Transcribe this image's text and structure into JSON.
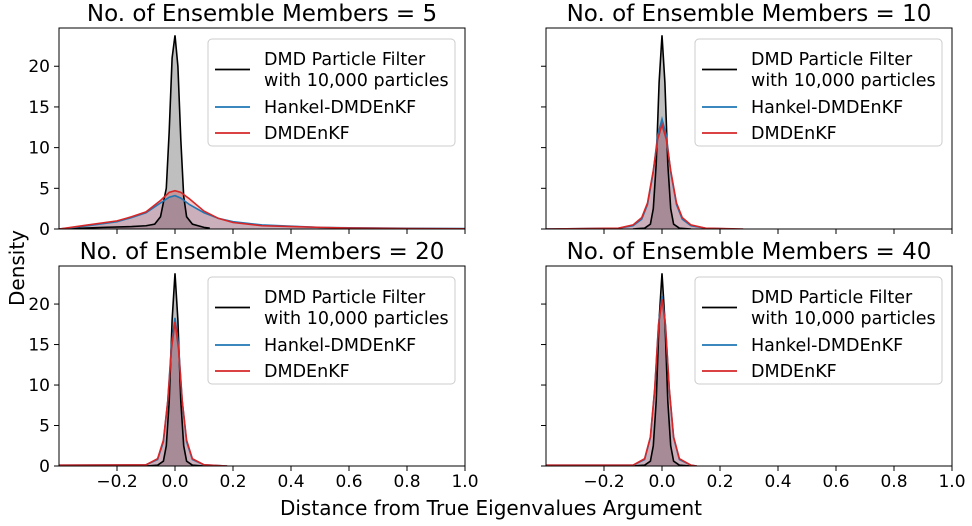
{
  "figure": {
    "ylabel": "Density",
    "xlabel": "Distance from True Eigenvalues Argument"
  },
  "colors": {
    "particle_filter": "#000000",
    "hankel": "#1f77b4",
    "dmdenkf": "#d62728"
  },
  "chart_data": [
    {
      "type": "line",
      "title": "No. of Ensemble Members = 5",
      "xlim": [
        -0.4,
        1.0
      ],
      "ylim": [
        0,
        24.7
      ],
      "xticks": [
        -0.2,
        0.0,
        0.2,
        0.4,
        0.6,
        0.8,
        1.0
      ],
      "xtick_labels": [
        "−0.2",
        "0.0",
        "0.2",
        "0.4",
        "0.6",
        "0.8",
        "1.0"
      ],
      "yticks": [
        0,
        5,
        10,
        15,
        20
      ],
      "ytick_labels": [
        "0",
        "5",
        "10",
        "15",
        "20"
      ],
      "show_y_tick_labels": true,
      "show_x_tick_labels": false,
      "legend": [
        "DMD Particle Filter with 10,000 particles",
        "Hankel-DMDEnKF",
        "DMDEnKF"
      ],
      "legend_lines": [
        [
          "DMD Particle Filter",
          "with 10,000 particles"
        ],
        [
          "Hankel-DMDEnKF"
        ],
        [
          "DMDEnKF"
        ]
      ],
      "legend_position": "top-right",
      "series": [
        {
          "name": "DMD Particle Filter with 10,000 particles",
          "x": [
            -0.4,
            -0.25,
            -0.15,
            -0.1,
            -0.07,
            -0.05,
            -0.03,
            -0.02,
            -0.01,
            0.0,
            0.01,
            0.02,
            0.03,
            0.04,
            0.06,
            0.1,
            0.12
          ],
          "y": [
            0,
            0.2,
            0.3,
            0.4,
            0.6,
            1.5,
            5,
            12,
            21,
            23.8,
            20,
            11,
            4,
            1.5,
            0.6,
            0.2,
            0.1
          ]
        },
        {
          "name": "Hankel-DMDEnKF",
          "x": [
            -0.4,
            -0.3,
            -0.2,
            -0.15,
            -0.1,
            -0.05,
            -0.02,
            0.0,
            0.02,
            0.05,
            0.1,
            0.15,
            0.2,
            0.3,
            0.4,
            0.5,
            0.6,
            0.8,
            1.0
          ],
          "y": [
            0,
            0.4,
            0.9,
            1.4,
            2.0,
            3.2,
            3.9,
            4.1,
            3.8,
            3.0,
            2.0,
            1.3,
            0.9,
            0.5,
            0.35,
            0.2,
            0.15,
            0.08,
            0.05
          ]
        },
        {
          "name": "DMDEnKF",
          "x": [
            -0.4,
            -0.3,
            -0.2,
            -0.15,
            -0.1,
            -0.05,
            -0.02,
            0.0,
            0.02,
            0.05,
            0.1,
            0.15,
            0.2,
            0.3,
            0.4,
            0.5,
            0.6,
            0.8,
            1.0
          ],
          "y": [
            0,
            0.5,
            1.0,
            1.5,
            2.1,
            3.5,
            4.5,
            4.7,
            4.5,
            3.7,
            2.2,
            1.3,
            0.8,
            0.4,
            0.3,
            0.2,
            0.12,
            0.06,
            0.03
          ]
        }
      ]
    },
    {
      "type": "line",
      "title": "No. of Ensemble Members = 10",
      "xlim": [
        -0.4,
        1.0
      ],
      "ylim": [
        0,
        24.7
      ],
      "xticks": [
        -0.2,
        0.0,
        0.2,
        0.4,
        0.6,
        0.8,
        1.0
      ],
      "xtick_labels": [
        "−0.2",
        "0.0",
        "0.2",
        "0.4",
        "0.6",
        "0.8",
        "1.0"
      ],
      "yticks": [
        0,
        5,
        10,
        15,
        20
      ],
      "ytick_labels": [
        "0",
        "5",
        "10",
        "15",
        "20"
      ],
      "show_y_tick_labels": false,
      "show_x_tick_labels": false,
      "legend": [
        "DMD Particle Filter with 10,000 particles",
        "Hankel-DMDEnKF",
        "DMDEnKF"
      ],
      "legend_lines": [
        [
          "DMD Particle Filter",
          "with 10,000 particles"
        ],
        [
          "Hankel-DMDEnKF"
        ],
        [
          "DMDEnKF"
        ]
      ],
      "legend_position": "top-right",
      "series": [
        {
          "name": "DMD Particle Filter with 10,000 particles",
          "x": [
            -0.1,
            -0.06,
            -0.04,
            -0.03,
            -0.02,
            -0.01,
            0.0,
            0.01,
            0.02,
            0.03,
            0.04,
            0.06,
            0.1
          ],
          "y": [
            0,
            0.1,
            0.6,
            2.5,
            8,
            18,
            23.8,
            18,
            8,
            2.5,
            0.6,
            0.1,
            0
          ]
        },
        {
          "name": "Hankel-DMDEnKF",
          "x": [
            -0.4,
            -0.15,
            -0.1,
            -0.07,
            -0.05,
            -0.03,
            -0.015,
            0.0,
            0.015,
            0.03,
            0.05,
            0.07,
            0.1,
            0.15,
            0.25
          ],
          "y": [
            0,
            0.1,
            0.4,
            1.2,
            3,
            7,
            11.5,
            13.5,
            11.5,
            7,
            3,
            1.2,
            0.4,
            0.1,
            0
          ]
        },
        {
          "name": "DMDEnKF",
          "x": [
            -0.4,
            -0.15,
            -0.1,
            -0.07,
            -0.05,
            -0.03,
            -0.015,
            0.0,
            0.015,
            0.03,
            0.05,
            0.07,
            0.1,
            0.15,
            0.28
          ],
          "y": [
            0,
            0.1,
            0.5,
            1.4,
            3.2,
            7.2,
            11,
            12.8,
            11,
            7.2,
            3.2,
            1.4,
            0.5,
            0.1,
            0
          ]
        }
      ]
    },
    {
      "type": "line",
      "title": "No. of Ensemble Members = 20",
      "xlim": [
        -0.4,
        1.0
      ],
      "ylim": [
        0,
        24.7
      ],
      "xticks": [
        -0.2,
        0.0,
        0.2,
        0.4,
        0.6,
        0.8,
        1.0
      ],
      "xtick_labels": [
        "−0.2",
        "0.0",
        "0.2",
        "0.4",
        "0.6",
        "0.8",
        "1.0"
      ],
      "yticks": [
        0,
        5,
        10,
        15,
        20
      ],
      "ytick_labels": [
        "0",
        "5",
        "10",
        "15",
        "20"
      ],
      "show_y_tick_labels": true,
      "show_x_tick_labels": true,
      "legend": [
        "DMD Particle Filter with 10,000 particles",
        "Hankel-DMDEnKF",
        "DMDEnKF"
      ],
      "legend_lines": [
        [
          "DMD Particle Filter",
          "with 10,000 particles"
        ],
        [
          "Hankel-DMDEnKF"
        ],
        [
          "DMDEnKF"
        ]
      ],
      "legend_position": "top-right",
      "series": [
        {
          "name": "DMD Particle Filter with 10,000 particles",
          "x": [
            -0.1,
            -0.06,
            -0.04,
            -0.03,
            -0.02,
            -0.01,
            0.0,
            0.01,
            0.02,
            0.03,
            0.04,
            0.06,
            0.1
          ],
          "y": [
            0,
            0.1,
            0.6,
            2.5,
            8,
            18,
            23.8,
            18,
            8,
            2.5,
            0.6,
            0.1,
            0
          ]
        },
        {
          "name": "Hankel-DMDEnKF",
          "x": [
            -0.4,
            -0.1,
            -0.06,
            -0.04,
            -0.025,
            -0.012,
            0.0,
            0.012,
            0.025,
            0.04,
            0.06,
            0.1,
            0.18
          ],
          "y": [
            0.1,
            0.15,
            0.8,
            3,
            8,
            15,
            18.3,
            15,
            8,
            3,
            0.8,
            0.15,
            0
          ]
        },
        {
          "name": "DMDEnKF",
          "x": [
            -0.4,
            -0.1,
            -0.06,
            -0.04,
            -0.025,
            -0.012,
            0.0,
            0.012,
            0.025,
            0.04,
            0.06,
            0.1,
            0.18
          ],
          "y": [
            0.1,
            0.15,
            0.9,
            3.2,
            8,
            14.5,
            17.8,
            14.5,
            8,
            3.2,
            0.9,
            0.15,
            0
          ]
        }
      ]
    },
    {
      "type": "line",
      "title": "No. of Ensemble Members = 40",
      "xlim": [
        -0.4,
        1.0
      ],
      "ylim": [
        0,
        24.7
      ],
      "xticks": [
        -0.2,
        0.0,
        0.2,
        0.4,
        0.6,
        0.8,
        1.0
      ],
      "xtick_labels": [
        "−0.2",
        "0.0",
        "0.2",
        "0.4",
        "0.6",
        "0.8",
        "1.0"
      ],
      "yticks": [
        0,
        5,
        10,
        15,
        20
      ],
      "ytick_labels": [
        "0",
        "5",
        "10",
        "15",
        "20"
      ],
      "show_y_tick_labels": false,
      "show_x_tick_labels": true,
      "legend": [
        "DMD Particle Filter with 10,000 particles",
        "Hankel-DMDEnKF",
        "DMDEnKF"
      ],
      "legend_lines": [
        [
          "DMD Particle Filter",
          "with 10,000 particles"
        ],
        [
          "Hankel-DMDEnKF"
        ],
        [
          "DMDEnKF"
        ]
      ],
      "legend_position": "top-right",
      "series": [
        {
          "name": "DMD Particle Filter with 10,000 particles",
          "x": [
            -0.1,
            -0.06,
            -0.04,
            -0.03,
            -0.02,
            -0.01,
            0.0,
            0.01,
            0.02,
            0.03,
            0.04,
            0.06,
            0.1
          ],
          "y": [
            0,
            0.1,
            0.6,
            2.5,
            8,
            18,
            23.8,
            18,
            8,
            2.5,
            0.6,
            0.1,
            0
          ]
        },
        {
          "name": "Hankel-DMDEnKF",
          "x": [
            -0.4,
            -0.1,
            -0.06,
            -0.04,
            -0.025,
            -0.012,
            0.0,
            0.012,
            0.025,
            0.04,
            0.06,
            0.1,
            0.12
          ],
          "y": [
            0.1,
            0.1,
            0.8,
            3.5,
            9.5,
            17.5,
            21,
            17.5,
            9.5,
            3.5,
            0.8,
            0.1,
            0
          ]
        },
        {
          "name": "DMDEnKF",
          "x": [
            -0.4,
            -0.1,
            -0.06,
            -0.04,
            -0.025,
            -0.012,
            0.0,
            0.012,
            0.025,
            0.04,
            0.06,
            0.1,
            0.12
          ],
          "y": [
            0.1,
            0.1,
            0.9,
            3.6,
            9.6,
            17.3,
            20.6,
            17.3,
            9.6,
            3.6,
            0.9,
            0.1,
            0
          ]
        }
      ]
    }
  ]
}
